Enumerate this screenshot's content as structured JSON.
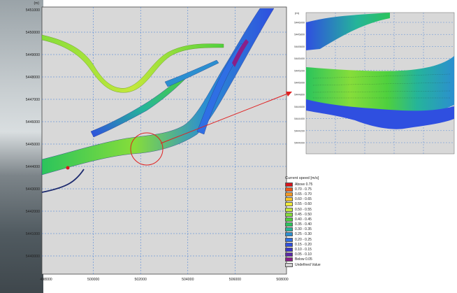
{
  "main_map": {
    "y_ticks": [
      "5451000",
      "5450000",
      "5449000",
      "5448000",
      "5447000",
      "5446000",
      "5445000",
      "5444000",
      "5443000",
      "5442000",
      "5441000",
      "5440000"
    ],
    "x_ticks": [
      "498000",
      "500000",
      "502000",
      "504000",
      "506000",
      "508000"
    ],
    "y_unit": "(m)"
  },
  "zoom_map": {
    "y_unit": "(m)",
    "y_ticks": [
      "5446000",
      "5445800",
      "5445600",
      "5445400",
      "5445200",
      "5445000",
      "5444800",
      "5444600",
      "5444400",
      "5444200",
      "5444000"
    ]
  },
  "legend": {
    "title": "Current speed [m/s]",
    "items": [
      {
        "label": "Above 0.75",
        "color": "#d8141c"
      },
      {
        "label": "0.70 - 0.75",
        "color": "#ee5a1a"
      },
      {
        "label": "0.65 - 0.70",
        "color": "#f59a24"
      },
      {
        "label": "0.60 - 0.65",
        "color": "#f7c62a"
      },
      {
        "label": "0.55 - 0.60",
        "color": "#f2ec38"
      },
      {
        "label": "0.50 - 0.55",
        "color": "#c4e83a"
      },
      {
        "label": "0.45 - 0.50",
        "color": "#86dd3a"
      },
      {
        "label": "0.40 - 0.45",
        "color": "#4ed03e"
      },
      {
        "label": "0.35 - 0.40",
        "color": "#2bc45c"
      },
      {
        "label": "0.30 - 0.35",
        "color": "#25b49a"
      },
      {
        "label": "0.25 - 0.30",
        "color": "#2b8fd0"
      },
      {
        "label": "0.20 - 0.25",
        "color": "#2f6fe4"
      },
      {
        "label": "0.15 - 0.20",
        "color": "#2f4fe0"
      },
      {
        "label": "0.10 - 0.15",
        "color": "#3a36c8"
      },
      {
        "label": "0.05 - 0.10",
        "color": "#5a2aa8"
      },
      {
        "label": "Below 0.05",
        "color": "#8a1f88"
      },
      {
        "label": "Undefined Value",
        "color": "#d2d2d2"
      }
    ]
  }
}
